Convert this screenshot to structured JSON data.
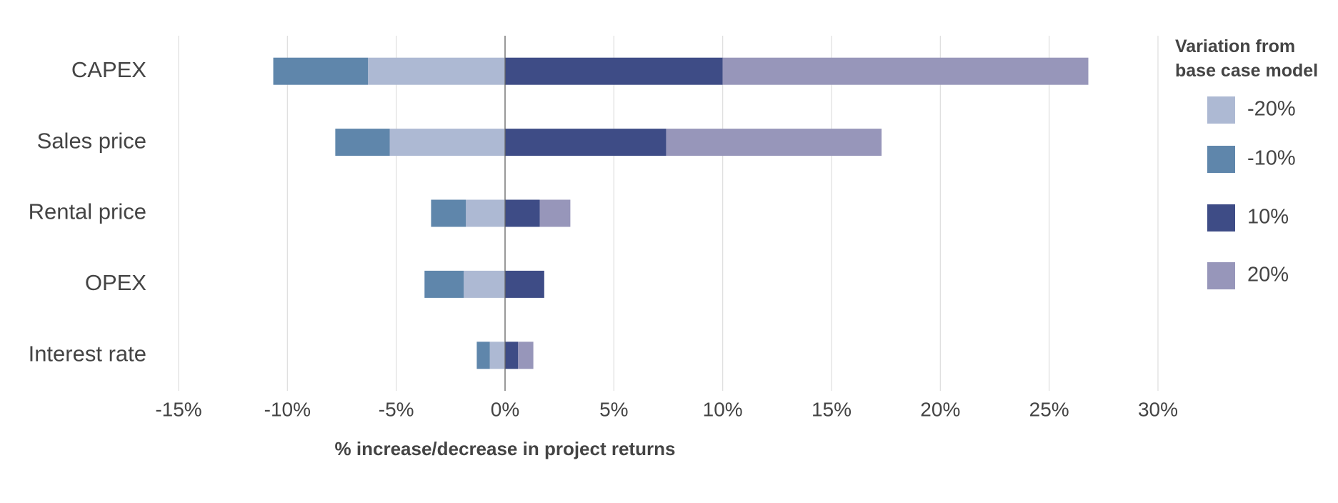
{
  "chart_data": {
    "type": "bar",
    "orientation": "horizontal",
    "stacked": true,
    "x_label": "% increase/decrease in project returns",
    "legend_title": "Variation from base case model",
    "legend_position": "right",
    "categories": [
      "CAPEX",
      "Sales price",
      "Rental price",
      "OPEX",
      "Interest rate"
    ],
    "series": [
      {
        "name": "-20%",
        "color": "#adb9d3",
        "values": [
          -6.3,
          -5.3,
          -1.8,
          -1.9,
          -0.7
        ]
      },
      {
        "name": "-10%",
        "color": "#5f86ab",
        "values": [
          -4.35,
          -2.5,
          -1.6,
          -1.8,
          -0.6
        ]
      },
      {
        "name": "10%",
        "color": "#3e4c86",
        "values": [
          10.0,
          7.4,
          1.6,
          1.8,
          0.6
        ]
      },
      {
        "name": "20%",
        "color": "#9796ba",
        "values": [
          16.8,
          9.9,
          1.4,
          null,
          0.7
        ]
      }
    ],
    "xlim": [
      -15,
      30
    ],
    "xticks": [
      {
        "value": -15,
        "label": "-15%"
      },
      {
        "value": -10,
        "label": "-10%"
      },
      {
        "value": -5,
        "label": "-5%"
      },
      {
        "value": 0,
        "label": "0%"
      },
      {
        "value": 5,
        "label": "5%"
      },
      {
        "value": 10,
        "label": "10%"
      },
      {
        "value": 15,
        "label": "15%"
      },
      {
        "value": 20,
        "label": "20%"
      },
      {
        "value": 25,
        "label": "25%"
      },
      {
        "value": 30,
        "label": "30%"
      }
    ],
    "grid": true
  }
}
